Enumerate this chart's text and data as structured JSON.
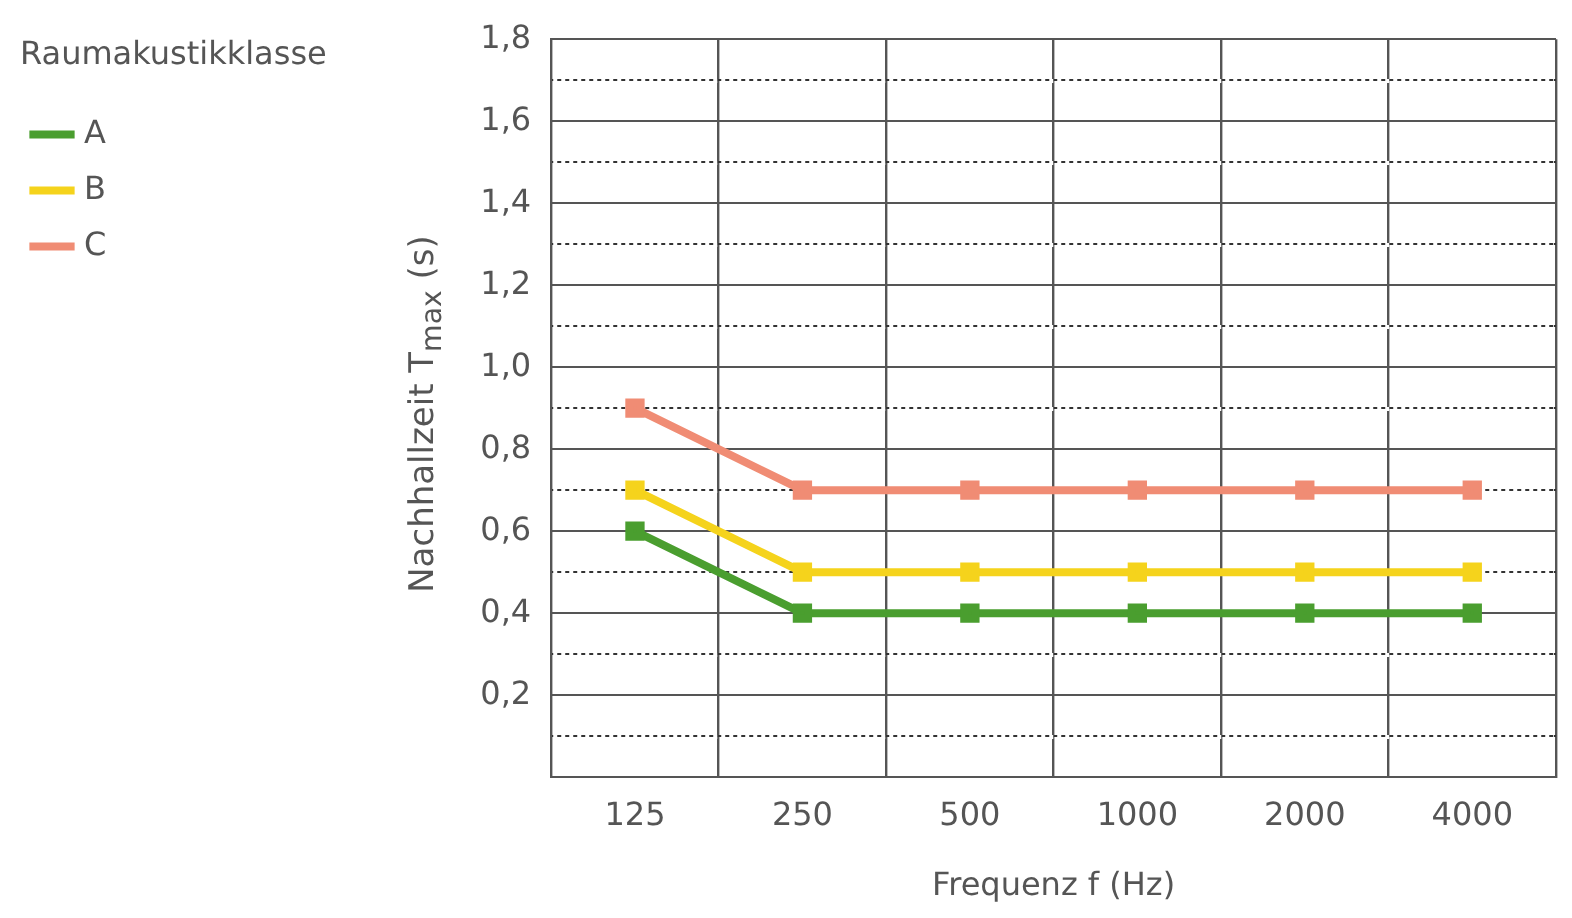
{
  "chart_data": {
    "type": "line",
    "xlabel": "Frequenz f (Hz)",
    "ylabel": "Nachhallzeit T$_{max}$ (s)",
    "legend_title": "Raumakustikklasse",
    "categories": [
      "125",
      "250",
      "500",
      "1000",
      "2000",
      "4000"
    ],
    "series": [
      {
        "name": "A",
        "color": "#4a9e2f",
        "values": [
          0.6,
          0.4,
          0.4,
          0.4,
          0.4,
          0.4
        ]
      },
      {
        "name": "B",
        "color": "#f5d31c",
        "values": [
          0.7,
          0.5,
          0.5,
          0.5,
          0.5,
          0.5
        ]
      },
      {
        "name": "C",
        "color": "#f08c74",
        "values": [
          0.9,
          0.7,
          0.7,
          0.7,
          0.7,
          0.7
        ]
      }
    ],
    "ylim": [
      0,
      1.8
    ],
    "yticks": [
      {
        "value": 0,
        "label": null
      },
      {
        "value": 0.1,
        "label": null
      },
      {
        "value": 0.2,
        "label": "0,2"
      },
      {
        "value": 0.3,
        "label": null
      },
      {
        "value": 0.4,
        "label": "0,4"
      },
      {
        "value": 0.5,
        "label": null
      },
      {
        "value": 0.6,
        "label": "0,6"
      },
      {
        "value": 0.7,
        "label": null
      },
      {
        "value": 0.8,
        "label": "0,8"
      },
      {
        "value": 0.9,
        "label": null
      },
      {
        "value": 1.0,
        "label": "1,0"
      },
      {
        "value": 1.1,
        "label": null
      },
      {
        "value": 1.2,
        "label": "1,2"
      },
      {
        "value": 1.3,
        "label": null
      },
      {
        "value": 1.4,
        "label": "1,4"
      },
      {
        "value": 1.5,
        "label": null
      },
      {
        "value": 1.6,
        "label": "1,6"
      },
      {
        "value": 1.7,
        "label": null
      },
      {
        "value": 1.8,
        "label": "1,8"
      }
    ],
    "grid": true,
    "legend": "top left",
    "marker": "square",
    "line_style": "solid"
  }
}
